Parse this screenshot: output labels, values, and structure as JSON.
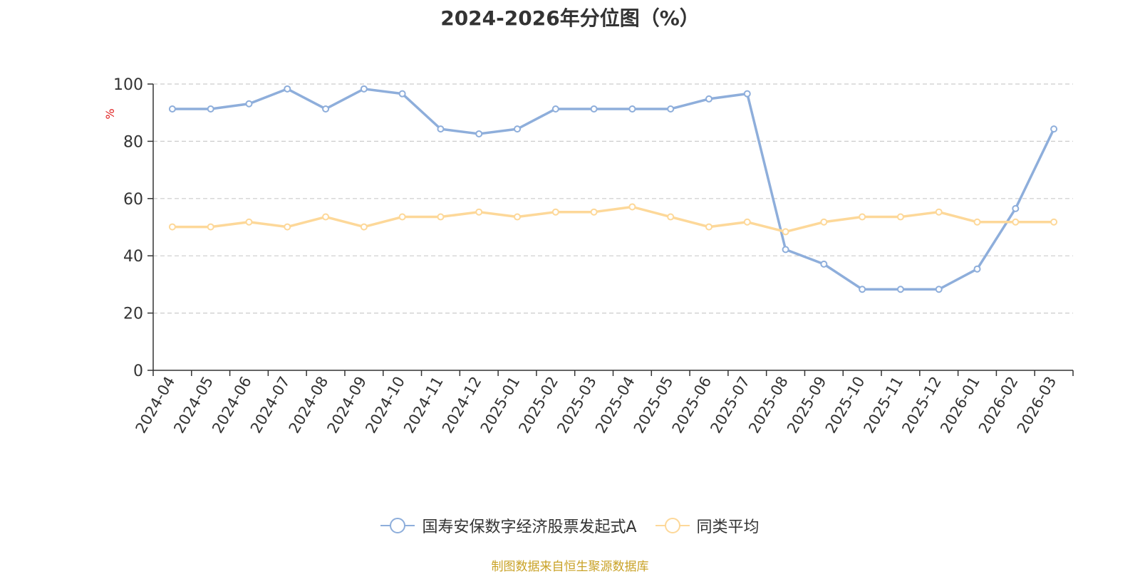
{
  "chart_data": {
    "type": "line",
    "title": "2024-2026年分位图（%）",
    "ylabel": "%",
    "ylim": [
      0,
      100
    ],
    "yticks": [
      0,
      20,
      40,
      60,
      80,
      100
    ],
    "grid": true,
    "legend_position": "bottom",
    "categories": [
      "2024-04",
      "2024-05",
      "2024-06",
      "2024-07",
      "2024-08",
      "2024-09",
      "2024-10",
      "2024-11",
      "2024-12",
      "2025-01",
      "2025-02",
      "2025-03",
      "2025-04",
      "2025-05",
      "2025-06",
      "2025-07",
      "2025-08",
      "2025-09",
      "2025-10",
      "2025-11",
      "2025-12",
      "2026-01",
      "2026-02",
      "2026-03"
    ],
    "series": [
      {
        "name": "国寿安保数字经济股票发起式A",
        "color": "#8eaedb",
        "values": [
          91.3,
          91.3,
          93.1,
          98.3,
          91.3,
          98.3,
          96.6,
          84.3,
          82.6,
          84.3,
          91.3,
          91.3,
          91.3,
          91.3,
          94.8,
          96.6,
          42.2,
          37.1,
          28.3,
          28.3,
          28.3,
          35.4,
          56.5,
          84.3
        ]
      },
      {
        "name": "同类平均",
        "color": "#fdd899",
        "values": [
          50.1,
          50.1,
          51.8,
          50.1,
          53.6,
          50.1,
          53.6,
          53.6,
          55.3,
          53.6,
          55.3,
          55.3,
          57.1,
          53.6,
          50.1,
          51.8,
          48.4,
          51.8,
          53.6,
          53.6,
          55.3,
          51.8,
          51.8,
          51.8
        ]
      }
    ],
    "source": "制图数据来自恒生聚源数据库"
  }
}
